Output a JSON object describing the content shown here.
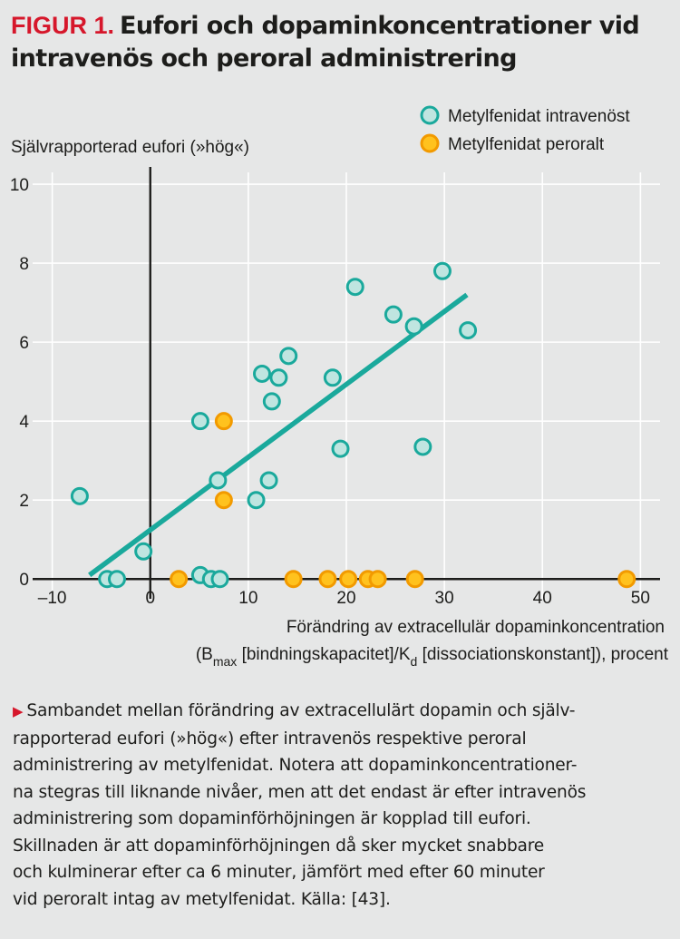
{
  "figure": {
    "label": "FIGUR 1.",
    "title": "Eufori och dopaminkoncentrationer vid intravenös och peroral administrering"
  },
  "chart_data": {
    "type": "scatter",
    "ylabel": "Självrapporterad eufori (»hög«)",
    "xlabel_line1": "Förändring av extracellulär dopaminkoncentration",
    "xlabel_line2": {
      "a": "(B",
      "a_sub": "max",
      "b": " [bindningskapacitet]/K",
      "b_sub": "d",
      "c": " [dissociationskonstant]), procent"
    },
    "xlim": [
      -12,
      52
    ],
    "ylim": [
      -0.5,
      10.3
    ],
    "xticks": [
      -10,
      0,
      10,
      20,
      30,
      40,
      50
    ],
    "xtick_labels": [
      "–10",
      "0",
      "10",
      "20",
      "30",
      "40",
      "50"
    ],
    "yticks": [
      0,
      2,
      4,
      6,
      8,
      10
    ],
    "ytick_labels": [
      "0",
      "2",
      "4",
      "6",
      "8",
      "10"
    ],
    "grid": true,
    "legend_position": "top-right",
    "series": [
      {
        "name": "Metylfenidat intravenöst",
        "color": "#1aa99c",
        "fill": "#bfe5e0",
        "points": [
          [
            -7.2,
            2.1
          ],
          [
            -4.4,
            0.0
          ],
          [
            -3.4,
            0.0
          ],
          [
            -0.7,
            0.7
          ],
          [
            5.1,
            4.0
          ],
          [
            5.1,
            0.1
          ],
          [
            6.2,
            0.0
          ],
          [
            6.9,
            2.5
          ],
          [
            7.1,
            0.0
          ],
          [
            10.8,
            2.0
          ],
          [
            11.4,
            5.2
          ],
          [
            12.1,
            2.5
          ],
          [
            12.4,
            4.5
          ],
          [
            13.1,
            5.1
          ],
          [
            14.1,
            5.65
          ],
          [
            18.6,
            5.1
          ],
          [
            19.4,
            3.3
          ],
          [
            20.9,
            7.4
          ],
          [
            24.8,
            6.7
          ],
          [
            26.9,
            6.4
          ],
          [
            27.8,
            3.35
          ],
          [
            29.8,
            7.8
          ],
          [
            32.4,
            6.3
          ]
        ],
        "trend": [
          [
            -6.2,
            0.1
          ],
          [
            32.3,
            7.2
          ]
        ]
      },
      {
        "name": "Metylfenidat peroralt",
        "color": "#f29a00",
        "fill": "#ffc21e",
        "points": [
          [
            7.5,
            4.0
          ],
          [
            7.5,
            2.0
          ],
          [
            2.9,
            0.0
          ],
          [
            14.6,
            0.0
          ],
          [
            18.1,
            0.0
          ],
          [
            20.2,
            0.0
          ],
          [
            22.2,
            0.0
          ],
          [
            23.2,
            0.0
          ],
          [
            27.0,
            0.0
          ],
          [
            48.6,
            0.0
          ]
        ]
      }
    ]
  },
  "caption": "Sambandet mellan förändring av extracellulärt dopamin och självrapporterad eufori (»hög«) efter intravenös respektive peroral administrering av metylfenidat. Notera att dopaminkoncentrationerna stegras till liknande nivåer, men att det endast är efter intravenös administrering som dopaminförhöjningen är kopplad till eufori. Skillnaden är att dopaminförhöjningen då sker mycket snabbare och kulminerar efter ca 6 minuter, jämfört med efter 60 minuter vid peroralt intag av metylfenidat. Källa: [43].",
  "caption_lines": [
    "Sambandet mellan förändring av extracellulärt dopamin och själv-",
    "rapporterad eufori (»hög«) efter intravenös respektive peroral",
    "administrering av metylfenidat. Notera att dopaminkoncentrationer-",
    "na stegras till liknande nivåer, men att det endast är efter intravenös",
    "administrering som dopaminförhöjningen är kopplad till eufori.",
    "Skillnaden är att dopaminförhöjningen då sker mycket snabbare",
    "och kulminerar efter ca 6 minuter, jämfört med efter 60 minuter",
    "vid peroralt intag av metylfenidat. Källa: [43]."
  ]
}
